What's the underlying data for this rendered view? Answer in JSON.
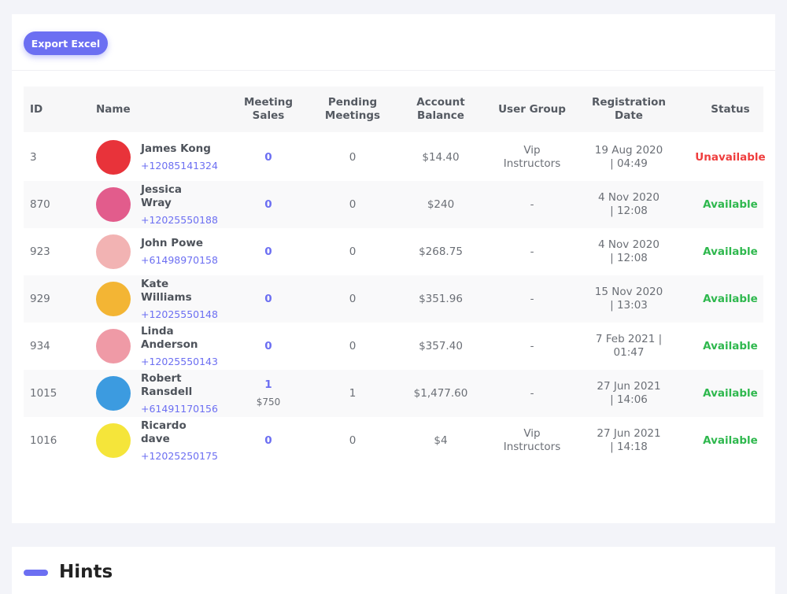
{
  "toolbar": {
    "export_button": "Export Excel"
  },
  "table": {
    "columns": [
      "ID",
      "Name",
      "Meeting Sales",
      "Pending Meetings",
      "Account Balance",
      "User Group",
      "Registration Date",
      "Status"
    ],
    "rows": [
      {
        "id": "3",
        "name": "James Kong",
        "phone": "+12085141324",
        "meeting_sales": "0",
        "pending": "0",
        "balance": "$14.40",
        "group": "Vip Instructors",
        "date": "19 Aug 2020 | 04:49",
        "status": "Unavailable",
        "status_color": "#ef3e3e",
        "avatar_color": "#e8333a"
      },
      {
        "id": "870",
        "name": "Jessica Wray",
        "phone": "+12025550188",
        "meeting_sales": "0",
        "pending": "0",
        "balance": "$240",
        "group": "-",
        "date": "4 Nov 2020 | 12:08",
        "status": "Available",
        "status_color": "#2fb84e",
        "avatar_color": "#e25c8c"
      },
      {
        "id": "923",
        "name": "John Powe",
        "phone": "+61498970158",
        "meeting_sales": "0",
        "pending": "0",
        "balance": "$268.75",
        "group": "-",
        "date": "4 Nov 2020 | 12:08",
        "status": "Available",
        "status_color": "#2fb84e",
        "avatar_color": "#f2b3b3"
      },
      {
        "id": "929",
        "name": "Kate Williams",
        "phone": "+12025550148",
        "meeting_sales": "0",
        "pending": "0",
        "balance": "$351.96",
        "group": "-",
        "date": "15 Nov 2020 | 13:03",
        "status": "Available",
        "status_color": "#2fb84e",
        "avatar_color": "#f3b534"
      },
      {
        "id": "934",
        "name": "Linda Anderson",
        "phone": "+12025550143",
        "meeting_sales": "0",
        "pending": "0",
        "balance": "$357.40",
        "group": "-",
        "date": "7 Feb 2021 | 01:47",
        "status": "Available",
        "status_color": "#2fb84e",
        "avatar_color": "#ef9aa6"
      },
      {
        "id": "1015",
        "name": "Robert Ransdell",
        "phone": "+61491170156",
        "meeting_sales": "1",
        "meeting_amount": "$750",
        "pending": "1",
        "balance": "$1,477.60",
        "group": "-",
        "date": "27 Jun 2021 | 14:06",
        "status": "Available",
        "status_color": "#2fb84e",
        "avatar_color": "#3c9be0"
      },
      {
        "id": "1016",
        "name": "Ricardo dave",
        "phone": "+12025250175",
        "meeting_sales": "0",
        "pending": "0",
        "balance": "$4",
        "group": "Vip Instructors",
        "date": "27 Jun 2021 | 14:18",
        "status": "Available",
        "status_color": "#2fb84e",
        "avatar_color": "#f5e53a"
      }
    ]
  },
  "hints": {
    "title": "Hints"
  }
}
